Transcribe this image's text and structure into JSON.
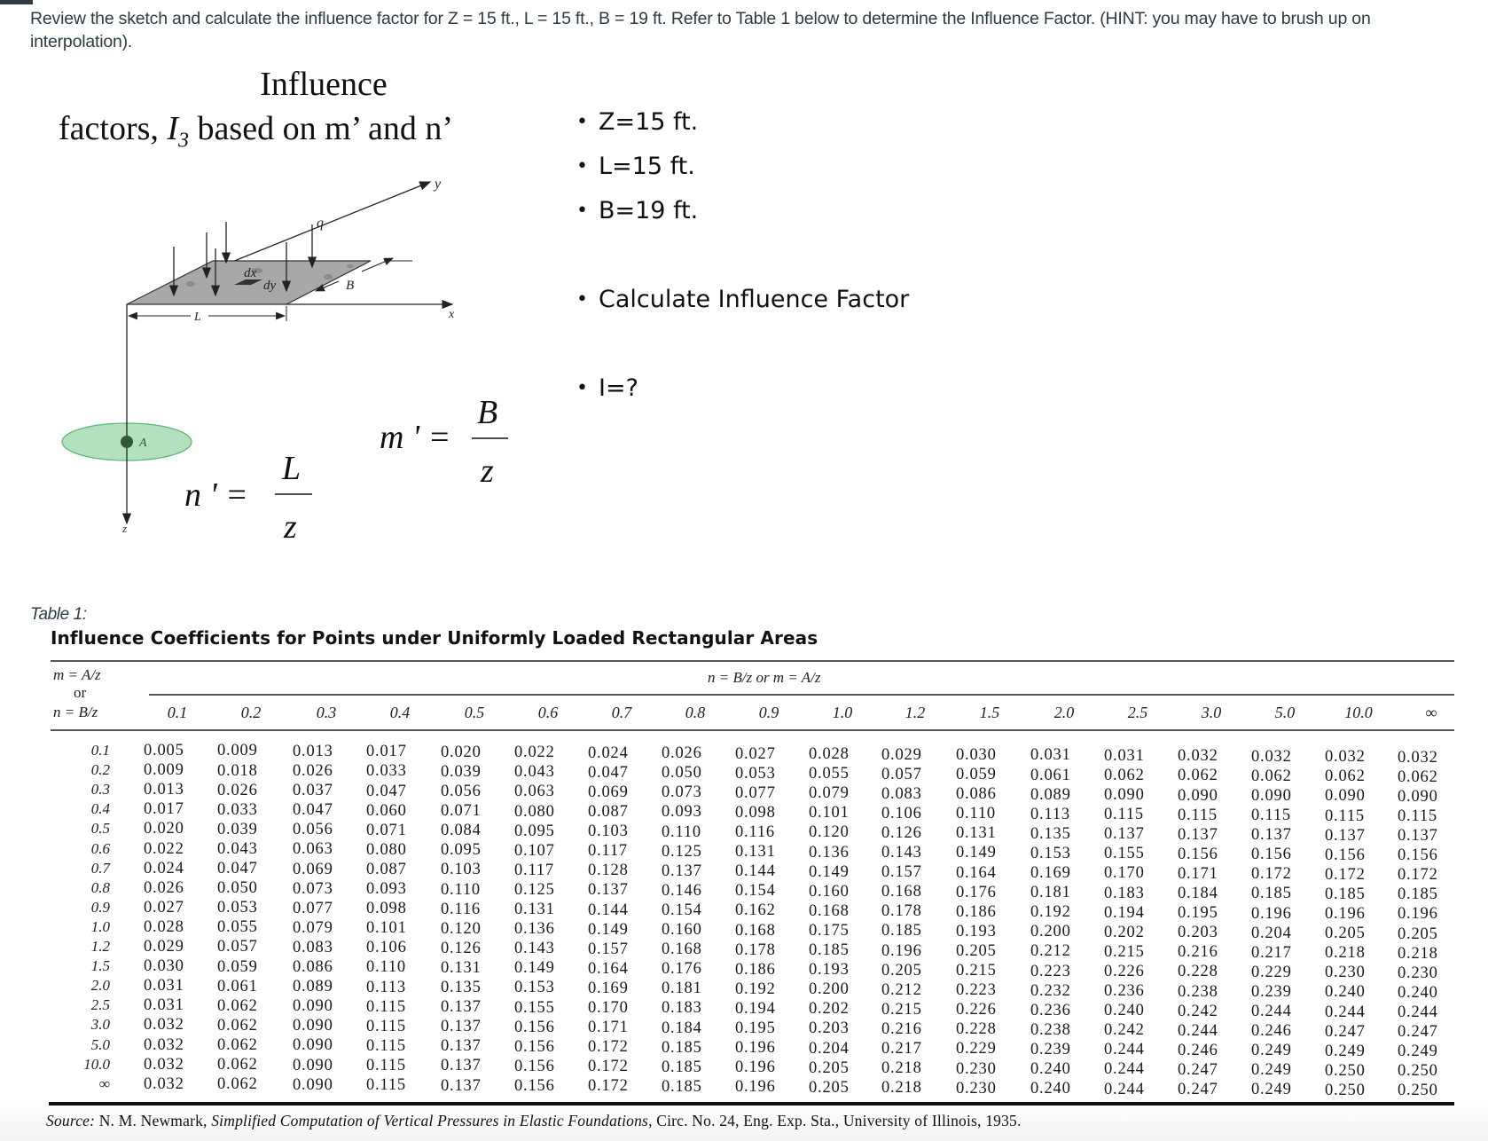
{
  "question": {
    "text": "Review the sketch and calculate the influence factor for Z = 15 ft., L = 15 ft., B = 19 ft. Refer to Table 1 below to determine the Influence Factor. (HINT: you may have to brush up on interpolation)."
  },
  "slide": {
    "title_line1": "Influence",
    "title_line2_prefix": "factors, ",
    "title_symbol": "I",
    "title_subscript": "3",
    "title_line2_suffix": " based on m’ and n’",
    "diagram_labels": {
      "y_axis": "y",
      "x_axis": "x",
      "z_axis": "z",
      "load": "q",
      "dx": "dx",
      "dy": "dy",
      "width": "B",
      "length": "L",
      "point": "A"
    },
    "formula_n": {
      "lhs": "n ' =",
      "num": "L",
      "den": "z"
    },
    "formula_m": {
      "lhs": "m ' =",
      "num": "B",
      "den": "z"
    },
    "bullets": [
      "Z=15 ft.",
      "L=15 ft.",
      "B=19 ft.",
      "Calculate Influence Factor",
      "I=?"
    ]
  },
  "table": {
    "label": "Table 1:",
    "title": "Influence Coefficients for Points under Uniformly Loaded Rectangular Areas",
    "corner_header": {
      "line1": "m = A/z",
      "line2": "or",
      "line3": "n = B/z"
    },
    "span_header": "n  =  B/z or m  =  A/z",
    "columns": [
      "0.1",
      "0.2",
      "0.3",
      "0.4",
      "0.5",
      "0.6",
      "0.7",
      "0.8",
      "0.9",
      "1.0",
      "1.2",
      "1.5",
      "2.0",
      "2.5",
      "3.0",
      "5.0",
      "10.0",
      "∞"
    ],
    "rows": [
      {
        "m": "0.1",
        "values": [
          "0.005",
          "0.009",
          "0.013",
          "0.017",
          "0.020",
          "0.022",
          "0.024",
          "0.026",
          "0.027",
          "0.028",
          "0.029",
          "0.030",
          "0.031",
          "0.031",
          "0.032",
          "0.032",
          "0.032",
          "0.032"
        ]
      },
      {
        "m": "0.2",
        "values": [
          "0.009",
          "0.018",
          "0.026",
          "0.033",
          "0.039",
          "0.043",
          "0.047",
          "0.050",
          "0.053",
          "0.055",
          "0.057",
          "0.059",
          "0.061",
          "0.062",
          "0.062",
          "0.062",
          "0.062",
          "0.062"
        ]
      },
      {
        "m": "0.3",
        "values": [
          "0.013",
          "0.026",
          "0.037",
          "0.047",
          "0.056",
          "0.063",
          "0.069",
          "0.073",
          "0.077",
          "0.079",
          "0.083",
          "0.086",
          "0.089",
          "0.090",
          "0.090",
          "0.090",
          "0.090",
          "0.090"
        ]
      },
      {
        "m": "0.4",
        "values": [
          "0.017",
          "0.033",
          "0.047",
          "0.060",
          "0.071",
          "0.080",
          "0.087",
          "0.093",
          "0.098",
          "0.101",
          "0.106",
          "0.110",
          "0.113",
          "0.115",
          "0.115",
          "0.115",
          "0.115",
          "0.115"
        ]
      },
      {
        "m": "0.5",
        "values": [
          "0.020",
          "0.039",
          "0.056",
          "0.071",
          "0.084",
          "0.095",
          "0.103",
          "0.110",
          "0.116",
          "0.120",
          "0.126",
          "0.131",
          "0.135",
          "0.137",
          "0.137",
          "0.137",
          "0.137",
          "0.137"
        ]
      },
      {
        "m": "0.6",
        "values": [
          "0.022",
          "0.043",
          "0.063",
          "0.080",
          "0.095",
          "0.107",
          "0.117",
          "0.125",
          "0.131",
          "0.136",
          "0.143",
          "0.149",
          "0.153",
          "0.155",
          "0.156",
          "0.156",
          "0.156",
          "0.156"
        ]
      },
      {
        "m": "0.7",
        "values": [
          "0.024",
          "0.047",
          "0.069",
          "0.087",
          "0.103",
          "0.117",
          "0.128",
          "0.137",
          "0.144",
          "0.149",
          "0.157",
          "0.164",
          "0.169",
          "0.170",
          "0.171",
          "0.172",
          "0.172",
          "0.172"
        ]
      },
      {
        "m": "0.8",
        "values": [
          "0.026",
          "0.050",
          "0.073",
          "0.093",
          "0.110",
          "0.125",
          "0.137",
          "0.146",
          "0.154",
          "0.160",
          "0.168",
          "0.176",
          "0.181",
          "0.183",
          "0.184",
          "0.185",
          "0.185",
          "0.185"
        ]
      },
      {
        "m": "0.9",
        "values": [
          "0.027",
          "0.053",
          "0.077",
          "0.098",
          "0.116",
          "0.131",
          "0.144",
          "0.154",
          "0.162",
          "0.168",
          "0.178",
          "0.186",
          "0.192",
          "0.194",
          "0.195",
          "0.196",
          "0.196",
          "0.196"
        ]
      },
      {
        "m": "1.0",
        "values": [
          "0.028",
          "0.055",
          "0.079",
          "0.101",
          "0.120",
          "0.136",
          "0.149",
          "0.160",
          "0.168",
          "0.175",
          "0.185",
          "0.193",
          "0.200",
          "0.202",
          "0.203",
          "0.204",
          "0.205",
          "0.205"
        ]
      },
      {
        "m": "1.2",
        "values": [
          "0.029",
          "0.057",
          "0.083",
          "0.106",
          "0.126",
          "0.143",
          "0.157",
          "0.168",
          "0.178",
          "0.185",
          "0.196",
          "0.205",
          "0.212",
          "0.215",
          "0.216",
          "0.217",
          "0.218",
          "0.218"
        ]
      },
      {
        "m": "1.5",
        "values": [
          "0.030",
          "0.059",
          "0.086",
          "0.110",
          "0.131",
          "0.149",
          "0.164",
          "0.176",
          "0.186",
          "0.193",
          "0.205",
          "0.215",
          "0.223",
          "0.226",
          "0.228",
          "0.229",
          "0.230",
          "0.230"
        ]
      },
      {
        "m": "2.0",
        "values": [
          "0.031",
          "0.061",
          "0.089",
          "0.113",
          "0.135",
          "0.153",
          "0.169",
          "0.181",
          "0.192",
          "0.200",
          "0.212",
          "0.223",
          "0.232",
          "0.236",
          "0.238",
          "0.239",
          "0.240",
          "0.240"
        ]
      },
      {
        "m": "2.5",
        "values": [
          "0.031",
          "0.062",
          "0.090",
          "0.115",
          "0.137",
          "0.155",
          "0.170",
          "0.183",
          "0.194",
          "0.202",
          "0.215",
          "0.226",
          "0.236",
          "0.240",
          "0.242",
          "0.244",
          "0.244",
          "0.244"
        ]
      },
      {
        "m": "3.0",
        "values": [
          "0.032",
          "0.062",
          "0.090",
          "0.115",
          "0.137",
          "0.156",
          "0.171",
          "0.184",
          "0.195",
          "0.203",
          "0.216",
          "0.228",
          "0.238",
          "0.242",
          "0.244",
          "0.246",
          "0.247",
          "0.247"
        ]
      },
      {
        "m": "5.0",
        "values": [
          "0.032",
          "0.062",
          "0.090",
          "0.115",
          "0.137",
          "0.156",
          "0.172",
          "0.185",
          "0.196",
          "0.204",
          "0.217",
          "0.229",
          "0.239",
          "0.244",
          "0.246",
          "0.249",
          "0.249",
          "0.249"
        ]
      },
      {
        "m": "10.0",
        "values": [
          "0.032",
          "0.062",
          "0.090",
          "0.115",
          "0.137",
          "0.156",
          "0.172",
          "0.185",
          "0.196",
          "0.205",
          "0.218",
          "0.230",
          "0.240",
          "0.244",
          "0.247",
          "0.249",
          "0.250",
          "0.250"
        ]
      },
      {
        "m": "∞",
        "values": [
          "0.032",
          "0.062",
          "0.090",
          "0.115",
          "0.137",
          "0.156",
          "0.172",
          "0.185",
          "0.196",
          "0.205",
          "0.218",
          "0.230",
          "0.240",
          "0.244",
          "0.247",
          "0.249",
          "0.250",
          "0.250"
        ]
      }
    ],
    "source_prefix": "Source:",
    "source_author": " N. M. Newmark, ",
    "source_title": "Simplified Computation of Vertical Pressures in Elastic Foundations,",
    "source_rest": " Circ. No. 24, Eng. Exp. Sta., University of Illinois, 1935."
  },
  "colors": {
    "text_primary": "#2d3b45",
    "ellipse_fill": "#b3e0bf",
    "ellipse_stroke": "#5cb870",
    "point_fill": "#2f5a3a",
    "area_fill": "#a6a6a6"
  }
}
